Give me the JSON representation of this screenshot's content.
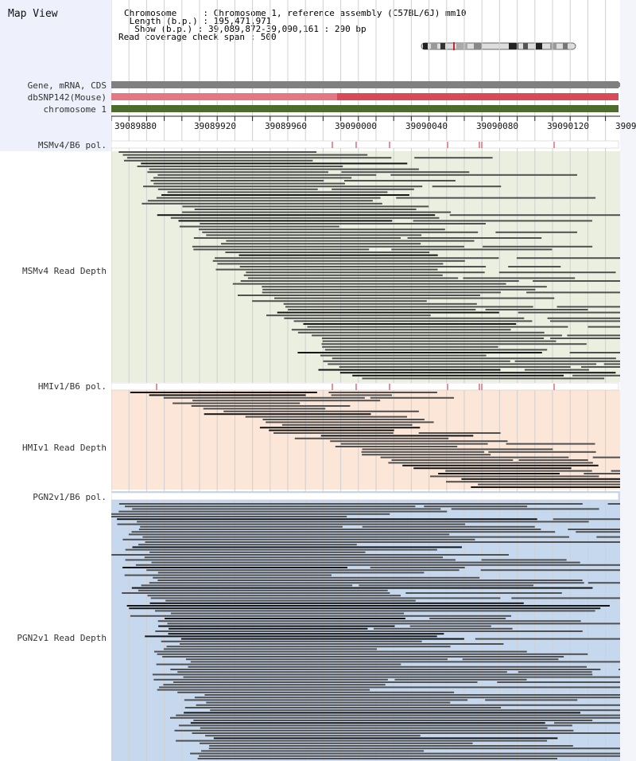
{
  "app_title": "Map View",
  "info": {
    "chromosome_line": "Chromosome     : Chromosome 1, reference assembly (C57BL/6J) mm10",
    "length_line": " Length (b.p.) : 195,471,971",
    "show_line": "  Show (b.p.) : 39,089,872-39,090,161 : 290 bp",
    "coverage_line": "Read coverage check span : 500"
  },
  "tracks": {
    "gene": "Gene, mRNA, CDS",
    "dbsnp": "dbSNP142(Mouse)",
    "chromosome": "chromosome 1",
    "msm_pol": "MSMv4/B6 pol.",
    "msm_depth": "MSMv4 Read Depth",
    "hmi_pol": "HMIv1/B6 pol.",
    "hmi_depth": "HMIv1 Read Depth",
    "pgn_pol": "PGN2v1/B6 pol.",
    "pgn_depth": "PGN2v1 Read Depth"
  },
  "ruler": {
    "ticks": [
      "39089880",
      "39089920",
      "39089960",
      "39090000",
      "39090040",
      "39090080",
      "39090120",
      "3909"
    ]
  },
  "colors": {
    "gene_bar": "#808080",
    "dbsnp_bar": "#d94a59",
    "dbsnp_bar_light": "#e47784",
    "chromosome_bar": "#4d6b2d",
    "msm_bg": "#ebefe0",
    "hmi_bg": "#fbe6d8",
    "pgn_bg": "#c6d8ee",
    "read": "#505050",
    "read_dark": "#151515",
    "snp_mark": "#cc2233"
  }
}
